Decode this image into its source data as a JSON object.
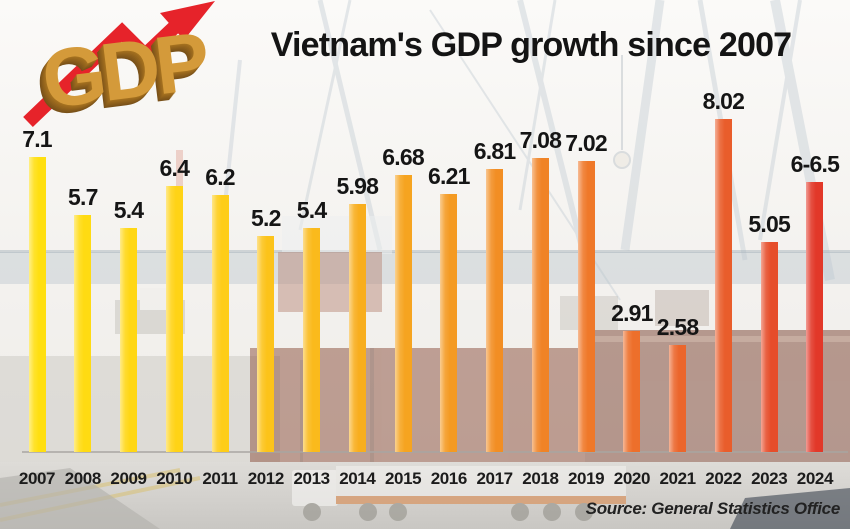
{
  "title": "Vietnam's GDP growth since 2007",
  "logo": {
    "text": "GDP"
  },
  "source": "Source: General Statistics Office",
  "colors": {
    "arrow_red": "#e6232a",
    "logo_gold": "#d49a3a",
    "axis_line": "#a8a6a2",
    "label_text": "#151515"
  },
  "chart_data": {
    "type": "bar",
    "title": "Vietnam's GDP growth since 2007",
    "categories": [
      "2007",
      "2008",
      "2009",
      "2010",
      "2011",
      "2012",
      "2013",
      "2014",
      "2015",
      "2016",
      "2017",
      "2018",
      "2019",
      "2020",
      "2021",
      "2022",
      "2023",
      "2024"
    ],
    "values": [
      7.1,
      5.7,
      5.4,
      6.4,
      6.2,
      5.2,
      5.4,
      5.98,
      6.68,
      6.21,
      6.81,
      7.08,
      7.02,
      2.91,
      2.58,
      8.02,
      5.05,
      6.5
    ],
    "value_labels": [
      "7.1",
      "5.7",
      "5.4",
      "6.4",
      "6.2",
      "5.2",
      "5.4",
      "5.98",
      "6.68",
      "6.21",
      "6.81",
      "7.08",
      "7.02",
      "2.91",
      "2.58",
      "8.02",
      "5.05",
      "6-6.5"
    ],
    "bar_colors": [
      "#ffdf10",
      "#ffdb12",
      "#ffd714",
      "#ffd316",
      "#fecd18",
      "#fcc31a",
      "#faba1c",
      "#f8ae1e",
      "#f6a420",
      "#f49a22",
      "#f28e24",
      "#f08326",
      "#ef7829",
      "#ed6f2b",
      "#eb662c",
      "#e95d2b",
      "#e64d2a",
      "#e23829"
    ],
    "xlabel": "",
    "ylabel": "",
    "ylim": [
      0,
      8.5
    ],
    "grid": false,
    "legend": false,
    "note": "2024 shown as forecast range 6-6.5"
  }
}
